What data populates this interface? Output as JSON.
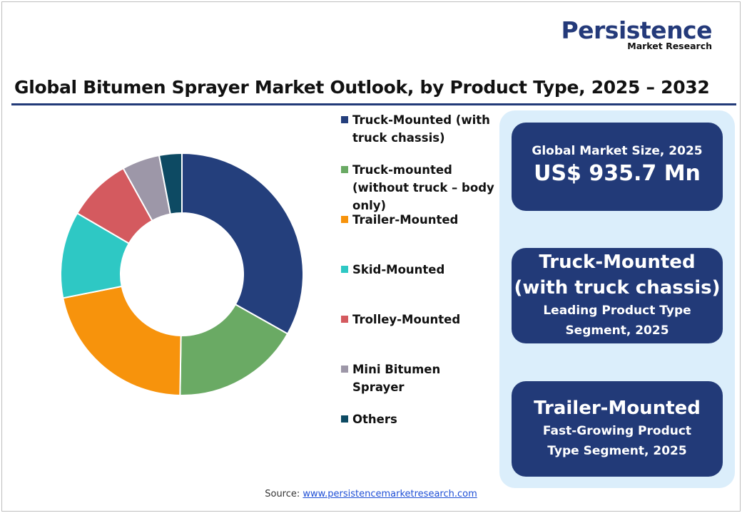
{
  "logo": {
    "name": "Persistence",
    "sub": "Market Research"
  },
  "title": "Global Bitumen Sprayer Market Outlook, by Product Type, 2025 – 2032",
  "chart_data": {
    "type": "pie",
    "variant": "donut",
    "categories": [
      "Truck-Mounted (with truck chassis)",
      "Truck-mounted (without truck – body only)",
      "Trailer-Mounted",
      "Skid-Mounted",
      "Trolley-Mounted",
      "Mini Bitumen Sprayer",
      "Others"
    ],
    "values": [
      33.0,
      17.0,
      21.5,
      11.5,
      8.5,
      5.0,
      3.0
    ],
    "colors": [
      "#243f7c",
      "#6aaa64",
      "#f7930c",
      "#2ec8c4",
      "#d45a5f",
      "#9d97a8",
      "#0d4a63"
    ],
    "legend_position": "right"
  },
  "summary": {
    "market_size_label": "Global Market Size, 2025",
    "market_size_value": "US$ 935.7 Mn",
    "leading_name_line1": "Truck-Mounted",
    "leading_name_line2": "(with truck chassis)",
    "leading_desc_line1": "Leading Product Type",
    "leading_desc_line2": "Segment, 2025",
    "growing_name": "Trailer-Mounted",
    "growing_desc_line1": "Fast-Growing Product",
    "growing_desc_line2": "Type Segment, 2025"
  },
  "source": {
    "label": "Source:",
    "link_text": "www.persistencemarketresearch.com"
  }
}
